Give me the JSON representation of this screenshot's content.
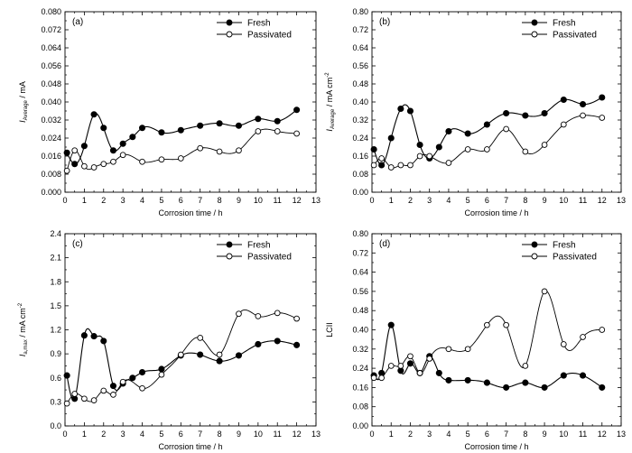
{
  "figure": {
    "background": "#ffffff",
    "line_color": "#000000"
  },
  "chart_data": [
    {
      "type": "line",
      "panel_label": "(a)",
      "ylabel_main": "I",
      "ylabel_sub": "Average",
      "ylabel_rest": " / mA",
      "ylabel_sup": "",
      "xlabel": "Corrosion time / h",
      "xlim": [
        0,
        13
      ],
      "ylim": [
        0,
        0.08
      ],
      "xticks": [
        0,
        1,
        2,
        3,
        4,
        5,
        6,
        7,
        8,
        9,
        10,
        11,
        12,
        13
      ],
      "yticks": [
        "0.000",
        "0.008",
        "0.016",
        "0.024",
        "0.032",
        "0.040",
        "0.048",
        "0.056",
        "0.064",
        "0.072",
        "0.080"
      ],
      "legend": "top-right",
      "series": [
        {
          "name": "Fresh",
          "marker": "filled-circle",
          "x": [
            0.1,
            0.5,
            1,
            1.5,
            2,
            2.5,
            3,
            3.5,
            4,
            5,
            6,
            7,
            8,
            9,
            10,
            11,
            12
          ],
          "y": [
            0.0175,
            0.0125,
            0.0205,
            0.0345,
            0.0285,
            0.0185,
            0.0215,
            0.0245,
            0.0285,
            0.0265,
            0.0275,
            0.0295,
            0.0305,
            0.0295,
            0.0325,
            0.0315,
            0.0365
          ]
        },
        {
          "name": "Passivated",
          "marker": "open-circle",
          "x": [
            0.1,
            0.5,
            1,
            1.5,
            2,
            2.5,
            3,
            4,
            5,
            6,
            7,
            8,
            9,
            10,
            11,
            12
          ],
          "y": [
            0.0095,
            0.0185,
            0.0115,
            0.011,
            0.0125,
            0.0135,
            0.0165,
            0.0135,
            0.0145,
            0.015,
            0.0195,
            0.018,
            0.0185,
            0.027,
            0.027,
            0.026
          ]
        }
      ]
    },
    {
      "type": "line",
      "panel_label": "(b)",
      "ylabel_main": "I",
      "ylabel_sub": "Average",
      "ylabel_rest": " / mA cm",
      "ylabel_sup": "-2",
      "xlabel": "Corrosion time / h",
      "xlim": [
        0,
        13
      ],
      "ylim": [
        0,
        0.8
      ],
      "xticks": [
        0,
        1,
        2,
        3,
        4,
        5,
        6,
        7,
        8,
        9,
        10,
        11,
        12,
        13
      ],
      "yticks": [
        "0.00",
        "0.08",
        "0.16",
        "0.24",
        "0.32",
        "0.40",
        "0.48",
        "0.56",
        "0.64",
        "0.72",
        "0.80"
      ],
      "legend": "top-right",
      "series": [
        {
          "name": "Fresh",
          "marker": "filled-circle",
          "x": [
            0.1,
            0.5,
            1,
            1.5,
            2,
            2.5,
            3,
            3.5,
            4,
            5,
            6,
            7,
            8,
            9,
            10,
            11,
            12
          ],
          "y": [
            0.19,
            0.12,
            0.24,
            0.37,
            0.36,
            0.21,
            0.15,
            0.2,
            0.27,
            0.26,
            0.3,
            0.35,
            0.34,
            0.35,
            0.41,
            0.39,
            0.42
          ]
        },
        {
          "name": "Passivated",
          "marker": "open-circle",
          "x": [
            0.1,
            0.5,
            1,
            1.5,
            2,
            2.5,
            3,
            4,
            5,
            6,
            7,
            8,
            9,
            10,
            11,
            12
          ],
          "y": [
            0.12,
            0.15,
            0.11,
            0.12,
            0.12,
            0.16,
            0.16,
            0.13,
            0.19,
            0.19,
            0.28,
            0.18,
            0.21,
            0.3,
            0.34,
            0.33
          ]
        }
      ]
    },
    {
      "type": "line",
      "panel_label": "(c)",
      "ylabel_main": "I",
      "ylabel_sub": "a,max",
      "ylabel_rest": " / mA cm",
      "ylabel_sup": "-2",
      "xlabel": "Corrosion time / h",
      "xlim": [
        0,
        13
      ],
      "ylim": [
        0,
        2.4
      ],
      "xticks": [
        0,
        1,
        2,
        3,
        4,
        5,
        6,
        7,
        8,
        9,
        10,
        11,
        12,
        13
      ],
      "yticks": [
        "0.0",
        "0.3",
        "0.6",
        "0.9",
        "1.2",
        "1.5",
        "1.8",
        "2.1",
        "2.4"
      ],
      "legend": "top-right",
      "series": [
        {
          "name": "Fresh",
          "marker": "filled-circle",
          "x": [
            0.1,
            0.5,
            1,
            1.5,
            2,
            2.5,
            3,
            3.5,
            4,
            5,
            6,
            7,
            8,
            9,
            10,
            11,
            12
          ],
          "y": [
            0.63,
            0.34,
            1.13,
            1.12,
            1.06,
            0.5,
            0.53,
            0.6,
            0.67,
            0.71,
            0.88,
            0.89,
            0.81,
            0.88,
            1.02,
            1.06,
            1.01
          ]
        },
        {
          "name": "Passivated",
          "marker": "open-circle",
          "x": [
            0.1,
            0.5,
            1,
            1.5,
            2,
            2.5,
            3,
            4,
            5,
            6,
            7,
            8,
            9,
            10,
            11,
            12
          ],
          "y": [
            0.28,
            0.4,
            0.34,
            0.32,
            0.44,
            0.39,
            0.55,
            0.47,
            0.64,
            0.89,
            1.1,
            0.89,
            1.4,
            1.37,
            1.41,
            1.34
          ]
        }
      ]
    },
    {
      "type": "line",
      "panel_label": "(d)",
      "ylabel_main": "LCII",
      "ylabel_sub": "",
      "ylabel_rest": "",
      "ylabel_sup": "",
      "xlabel": "Corrosion time / h",
      "xlim": [
        0,
        13
      ],
      "ylim": [
        0,
        0.8
      ],
      "xticks": [
        0,
        1,
        2,
        3,
        4,
        5,
        6,
        7,
        8,
        9,
        10,
        11,
        12,
        13
      ],
      "yticks": [
        "0.00",
        "0.08",
        "0.16",
        "0.24",
        "0.32",
        "0.40",
        "0.48",
        "0.56",
        "0.64",
        "0.72",
        "0.80"
      ],
      "legend": "top-right",
      "series": [
        {
          "name": "Fresh",
          "marker": "filled-circle",
          "x": [
            0.1,
            0.5,
            1,
            1.5,
            2,
            2.5,
            3,
            3.5,
            4,
            5,
            6,
            7,
            8,
            9,
            10,
            11,
            12
          ],
          "y": [
            0.21,
            0.22,
            0.42,
            0.23,
            0.26,
            0.22,
            0.29,
            0.22,
            0.19,
            0.19,
            0.18,
            0.16,
            0.18,
            0.16,
            0.21,
            0.21,
            0.16
          ]
        },
        {
          "name": "Passivated",
          "marker": "open-circle",
          "x": [
            0.1,
            0.5,
            1,
            1.5,
            2,
            2.5,
            3,
            4,
            5,
            6,
            7,
            8,
            9,
            10,
            11,
            12
          ],
          "y": [
            0.2,
            0.2,
            0.25,
            0.25,
            0.29,
            0.22,
            0.28,
            0.32,
            0.32,
            0.42,
            0.42,
            0.25,
            0.56,
            0.34,
            0.37,
            0.4
          ]
        }
      ]
    }
  ]
}
